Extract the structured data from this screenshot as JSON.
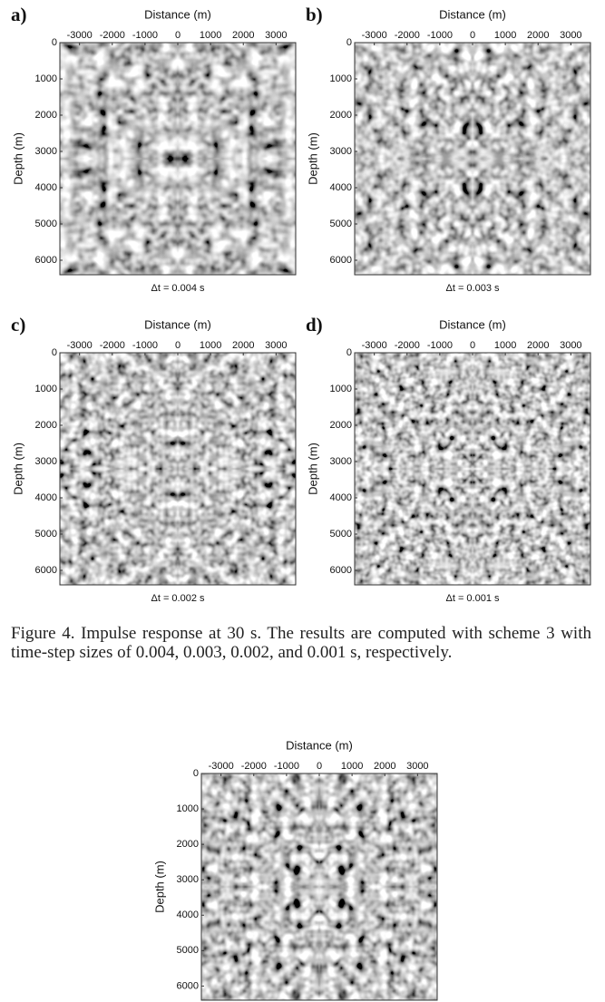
{
  "figure_4": {
    "panels": [
      {
        "label": "a)",
        "x_axis_label": "Distance (m)",
        "y_axis_label": "Depth (m)",
        "xlim": [
          -3600,
          3600
        ],
        "ylim": [
          0,
          6400
        ],
        "xticks": [
          -3000,
          -2000,
          -1000,
          0,
          1000,
          2000,
          3000
        ],
        "yticks": [
          0,
          1000,
          2000,
          3000,
          4000,
          5000,
          6000
        ],
        "time_step_label": "Δt = 0.004 s"
      },
      {
        "label": "b)",
        "x_axis_label": "Distance (m)",
        "y_axis_label": "Depth (m)",
        "xlim": [
          -3600,
          3600
        ],
        "ylim": [
          0,
          6400
        ],
        "xticks": [
          -3000,
          -2000,
          -1000,
          0,
          1000,
          2000,
          3000
        ],
        "yticks": [
          0,
          1000,
          2000,
          3000,
          4000,
          5000,
          6000
        ],
        "time_step_label": "Δt = 0.003 s"
      },
      {
        "label": "c)",
        "x_axis_label": "Distance (m)",
        "y_axis_label": "Depth (m)",
        "xlim": [
          -3600,
          3600
        ],
        "ylim": [
          0,
          6400
        ],
        "xticks": [
          -3000,
          -2000,
          -1000,
          0,
          1000,
          2000,
          3000
        ],
        "yticks": [
          0,
          1000,
          2000,
          3000,
          4000,
          5000,
          6000
        ],
        "time_step_label": "Δt = 0.002 s"
      },
      {
        "label": "d)",
        "x_axis_label": "Distance (m)",
        "y_axis_label": "Depth (m)",
        "xlim": [
          -3600,
          3600
        ],
        "ylim": [
          0,
          6400
        ],
        "xticks": [
          -3000,
          -2000,
          -1000,
          0,
          1000,
          2000,
          3000
        ],
        "yticks": [
          0,
          1000,
          2000,
          3000,
          4000,
          5000,
          6000
        ],
        "time_step_label": "Δt = 0.001 s"
      }
    ],
    "caption": "Figure 4. Impulse response at 30 s. The results are computed with scheme 3 with time-step sizes of 0.004, 0.003, 0.002, and 0.001 s, respectively."
  },
  "figure_5": {
    "panel": {
      "x_axis_label": "Distance (m)",
      "y_axis_label": "Depth (m)",
      "xlim": [
        -3600,
        3600
      ],
      "ylim": [
        0,
        6400
      ],
      "xticks": [
        -3000,
        -2000,
        -1000,
        0,
        1000,
        2000,
        3000
      ],
      "yticks": [
        0,
        1000,
        2000,
        3000,
        4000,
        5000,
        6000
      ]
    }
  }
}
